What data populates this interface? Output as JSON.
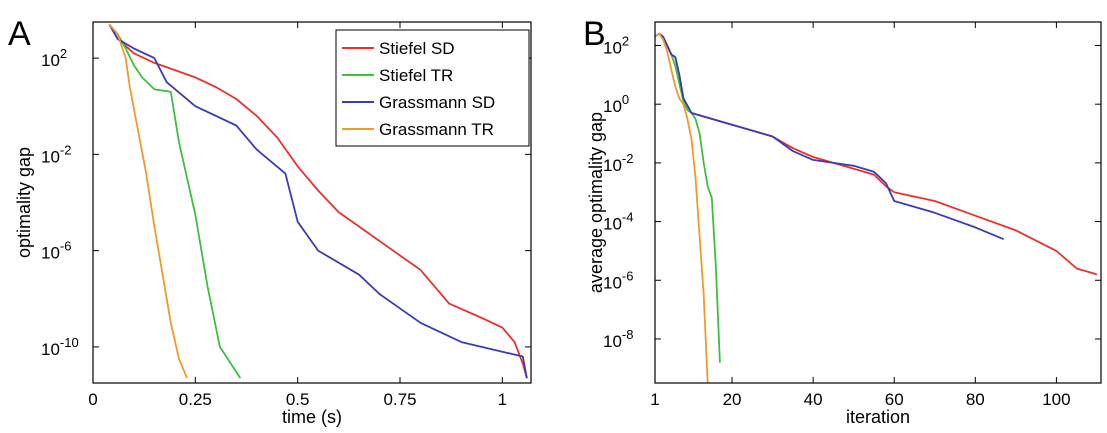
{
  "chart_data": [
    {
      "panel": "A",
      "type": "line",
      "xlabel": "time (s)",
      "ylabel": "optimality gap",
      "xlim": [
        0,
        1.07
      ],
      "ylim_log10": [
        -11.5,
        3.5
      ],
      "y_scale": "log",
      "x_ticks": [
        {
          "v": 0,
          "label": "0"
        },
        {
          "v": 0.25,
          "label": "0.25"
        },
        {
          "v": 0.5,
          "label": "0.5"
        },
        {
          "v": 0.75,
          "label": "0.75"
        },
        {
          "v": 1,
          "label": "1"
        }
      ],
      "y_ticks": [
        {
          "e": 2,
          "label": "10"
        },
        {
          "e": -2,
          "label": "10"
        },
        {
          "e": -6,
          "label": "10"
        },
        {
          "e": -10,
          "label": "10"
        }
      ],
      "legend": {
        "placement": "top-right"
      },
      "series": [
        {
          "name": "Stiefel SD",
          "color": "#e8322e",
          "points": [
            [
              0.04,
              3.4
            ],
            [
              0.06,
              2.8
            ],
            [
              0.1,
              2.2
            ],
            [
              0.15,
              1.8
            ],
            [
              0.2,
              1.5
            ],
            [
              0.25,
              1.2
            ],
            [
              0.3,
              0.8
            ],
            [
              0.35,
              0.3
            ],
            [
              0.4,
              -0.4
            ],
            [
              0.45,
              -1.3
            ],
            [
              0.5,
              -2.5
            ],
            [
              0.55,
              -3.5
            ],
            [
              0.6,
              -4.4
            ],
            [
              0.7,
              -5.6
            ],
            [
              0.8,
              -6.8
            ],
            [
              0.87,
              -8.2
            ],
            [
              0.95,
              -8.8
            ],
            [
              1.0,
              -9.2
            ],
            [
              1.03,
              -9.8
            ],
            [
              1.05,
              -10.7
            ],
            [
              1.06,
              -11.3
            ]
          ]
        },
        {
          "name": "Stiefel TR",
          "color": "#3fbf3f",
          "points": [
            [
              0.04,
              3.4
            ],
            [
              0.06,
              3.0
            ],
            [
              0.08,
              2.4
            ],
            [
              0.1,
              1.7
            ],
            [
              0.12,
              1.2
            ],
            [
              0.15,
              0.7
            ],
            [
              0.19,
              0.6
            ],
            [
              0.21,
              -1.5
            ],
            [
              0.25,
              -4.5
            ],
            [
              0.28,
              -7.5
            ],
            [
              0.31,
              -10.0
            ],
            [
              0.36,
              -11.3
            ]
          ]
        },
        {
          "name": "Grassmann SD",
          "color": "#3c3cb4",
          "points": [
            [
              0.04,
              3.4
            ],
            [
              0.06,
              2.8
            ],
            [
              0.1,
              2.4
            ],
            [
              0.15,
              2.0
            ],
            [
              0.18,
              1.0
            ],
            [
              0.25,
              0.0
            ],
            [
              0.35,
              -0.8
            ],
            [
              0.4,
              -1.8
            ],
            [
              0.47,
              -2.8
            ],
            [
              0.5,
              -4.8
            ],
            [
              0.55,
              -6.0
            ],
            [
              0.65,
              -7.0
            ],
            [
              0.7,
              -7.8
            ],
            [
              0.8,
              -9.0
            ],
            [
              0.9,
              -9.8
            ],
            [
              1.0,
              -10.2
            ],
            [
              1.05,
              -10.4
            ],
            [
              1.06,
              -11.3
            ]
          ]
        },
        {
          "name": "Grassmann TR",
          "color": "#ef9b29",
          "points": [
            [
              0.04,
              3.4
            ],
            [
              0.06,
              3.0
            ],
            [
              0.08,
              2.0
            ],
            [
              0.09,
              0.8
            ],
            [
              0.11,
              -1.0
            ],
            [
              0.13,
              -2.8
            ],
            [
              0.15,
              -5.0
            ],
            [
              0.17,
              -7.0
            ],
            [
              0.19,
              -9.0
            ],
            [
              0.21,
              -10.5
            ],
            [
              0.23,
              -11.3
            ]
          ]
        }
      ]
    },
    {
      "panel": "B",
      "type": "line",
      "xlabel": "iteration",
      "ylabel": "average optimality gap",
      "xlim": [
        1,
        111
      ],
      "ylim_log10": [
        -9.5,
        2.8
      ],
      "y_scale": "log",
      "x_ticks": [
        {
          "v": 1,
          "label": "1"
        },
        {
          "v": 20,
          "label": "20"
        },
        {
          "v": 40,
          "label": "40"
        },
        {
          "v": 60,
          "label": "60"
        },
        {
          "v": 80,
          "label": "80"
        },
        {
          "v": 100,
          "label": "100"
        }
      ],
      "y_ticks": [
        {
          "e": 2,
          "label": "10"
        },
        {
          "e": 0,
          "label": "10"
        },
        {
          "e": -2,
          "label": "10"
        },
        {
          "e": -4,
          "label": "10"
        },
        {
          "e": -6,
          "label": "10"
        },
        {
          "e": -8,
          "label": "10"
        }
      ],
      "series": [
        {
          "name": "Stiefel SD",
          "color": "#e8322e",
          "points": [
            [
              1,
              2.3
            ],
            [
              2,
              2.4
            ],
            [
              3,
              2.3
            ],
            [
              4,
              2.0
            ],
            [
              5,
              1.7
            ],
            [
              6,
              1.6
            ],
            [
              7,
              1.0
            ],
            [
              8,
              0.2
            ],
            [
              10,
              -0.3
            ],
            [
              15,
              -0.5
            ],
            [
              20,
              -0.7
            ],
            [
              25,
              -0.9
            ],
            [
              30,
              -1.1
            ],
            [
              35,
              -1.5
            ],
            [
              40,
              -1.8
            ],
            [
              45,
              -2.0
            ],
            [
              50,
              -2.2
            ],
            [
              55,
              -2.4
            ],
            [
              58,
              -2.8
            ],
            [
              60,
              -3.0
            ],
            [
              70,
              -3.3
            ],
            [
              80,
              -3.8
            ],
            [
              90,
              -4.3
            ],
            [
              100,
              -5.0
            ],
            [
              105,
              -5.6
            ],
            [
              110,
              -5.8
            ]
          ]
        },
        {
          "name": "Stiefel TR",
          "color": "#3fbf3f",
          "points": [
            [
              1,
              2.3
            ],
            [
              2,
              2.4
            ],
            [
              3,
              2.3
            ],
            [
              4,
              2.0
            ],
            [
              5,
              1.7
            ],
            [
              6,
              1.3
            ],
            [
              7,
              0.7
            ],
            [
              8,
              0.1
            ],
            [
              9,
              -0.2
            ],
            [
              10,
              -0.3
            ],
            [
              11,
              -0.5
            ],
            [
              12,
              -1.0
            ],
            [
              13,
              -2.0
            ],
            [
              14,
              -2.8
            ],
            [
              15,
              -3.2
            ],
            [
              16,
              -5.5
            ],
            [
              17,
              -8.8
            ]
          ]
        },
        {
          "name": "Grassmann SD",
          "color": "#3c3cb4",
          "points": [
            [
              1,
              2.3
            ],
            [
              2,
              2.4
            ],
            [
              3,
              2.3
            ],
            [
              4,
              2.0
            ],
            [
              5,
              1.7
            ],
            [
              6,
              1.6
            ],
            [
              7,
              1.0
            ],
            [
              8,
              0.2
            ],
            [
              10,
              -0.3
            ],
            [
              15,
              -0.5
            ],
            [
              20,
              -0.7
            ],
            [
              25,
              -0.9
            ],
            [
              30,
              -1.1
            ],
            [
              35,
              -1.6
            ],
            [
              40,
              -1.9
            ],
            [
              45,
              -2.0
            ],
            [
              50,
              -2.1
            ],
            [
              55,
              -2.3
            ],
            [
              58,
              -2.7
            ],
            [
              60,
              -3.3
            ],
            [
              70,
              -3.7
            ],
            [
              80,
              -4.2
            ],
            [
              87,
              -4.6
            ]
          ]
        },
        {
          "name": "Grassmann TR",
          "color": "#ef9b29",
          "points": [
            [
              1,
              2.3
            ],
            [
              2,
              2.4
            ],
            [
              3,
              2.2
            ],
            [
              4,
              1.8
            ],
            [
              5,
              1.2
            ],
            [
              6,
              0.6
            ],
            [
              7,
              0.2
            ],
            [
              8,
              0.0
            ],
            [
              9,
              -0.5
            ],
            [
              10,
              -1.2
            ],
            [
              11,
              -2.5
            ],
            [
              12,
              -4.5
            ],
            [
              13,
              -6.5
            ],
            [
              14,
              -9.5
            ]
          ]
        }
      ]
    }
  ]
}
